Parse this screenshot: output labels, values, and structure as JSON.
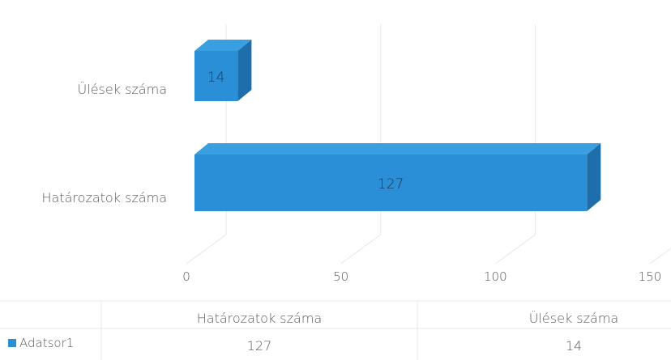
{
  "chart_data": {
    "type": "bar",
    "orientation": "horizontal",
    "style": "3d",
    "categories": [
      "Határozatok száma",
      "Ülések száma"
    ],
    "series": [
      {
        "name": "Adatsor1",
        "values": [
          127,
          14
        ],
        "color": "#2a8fd6"
      }
    ],
    "x_ticks": [
      "0",
      "50",
      "100",
      "150"
    ],
    "xlim": [
      0,
      150
    ],
    "grid": true,
    "data_labels": true,
    "data_table": {
      "headers": [
        "Határozatok száma",
        "Ülések száma"
      ],
      "rows": [
        {
          "label": "Adatsor1",
          "values": [
            "127",
            "14"
          ]
        }
      ]
    }
  }
}
